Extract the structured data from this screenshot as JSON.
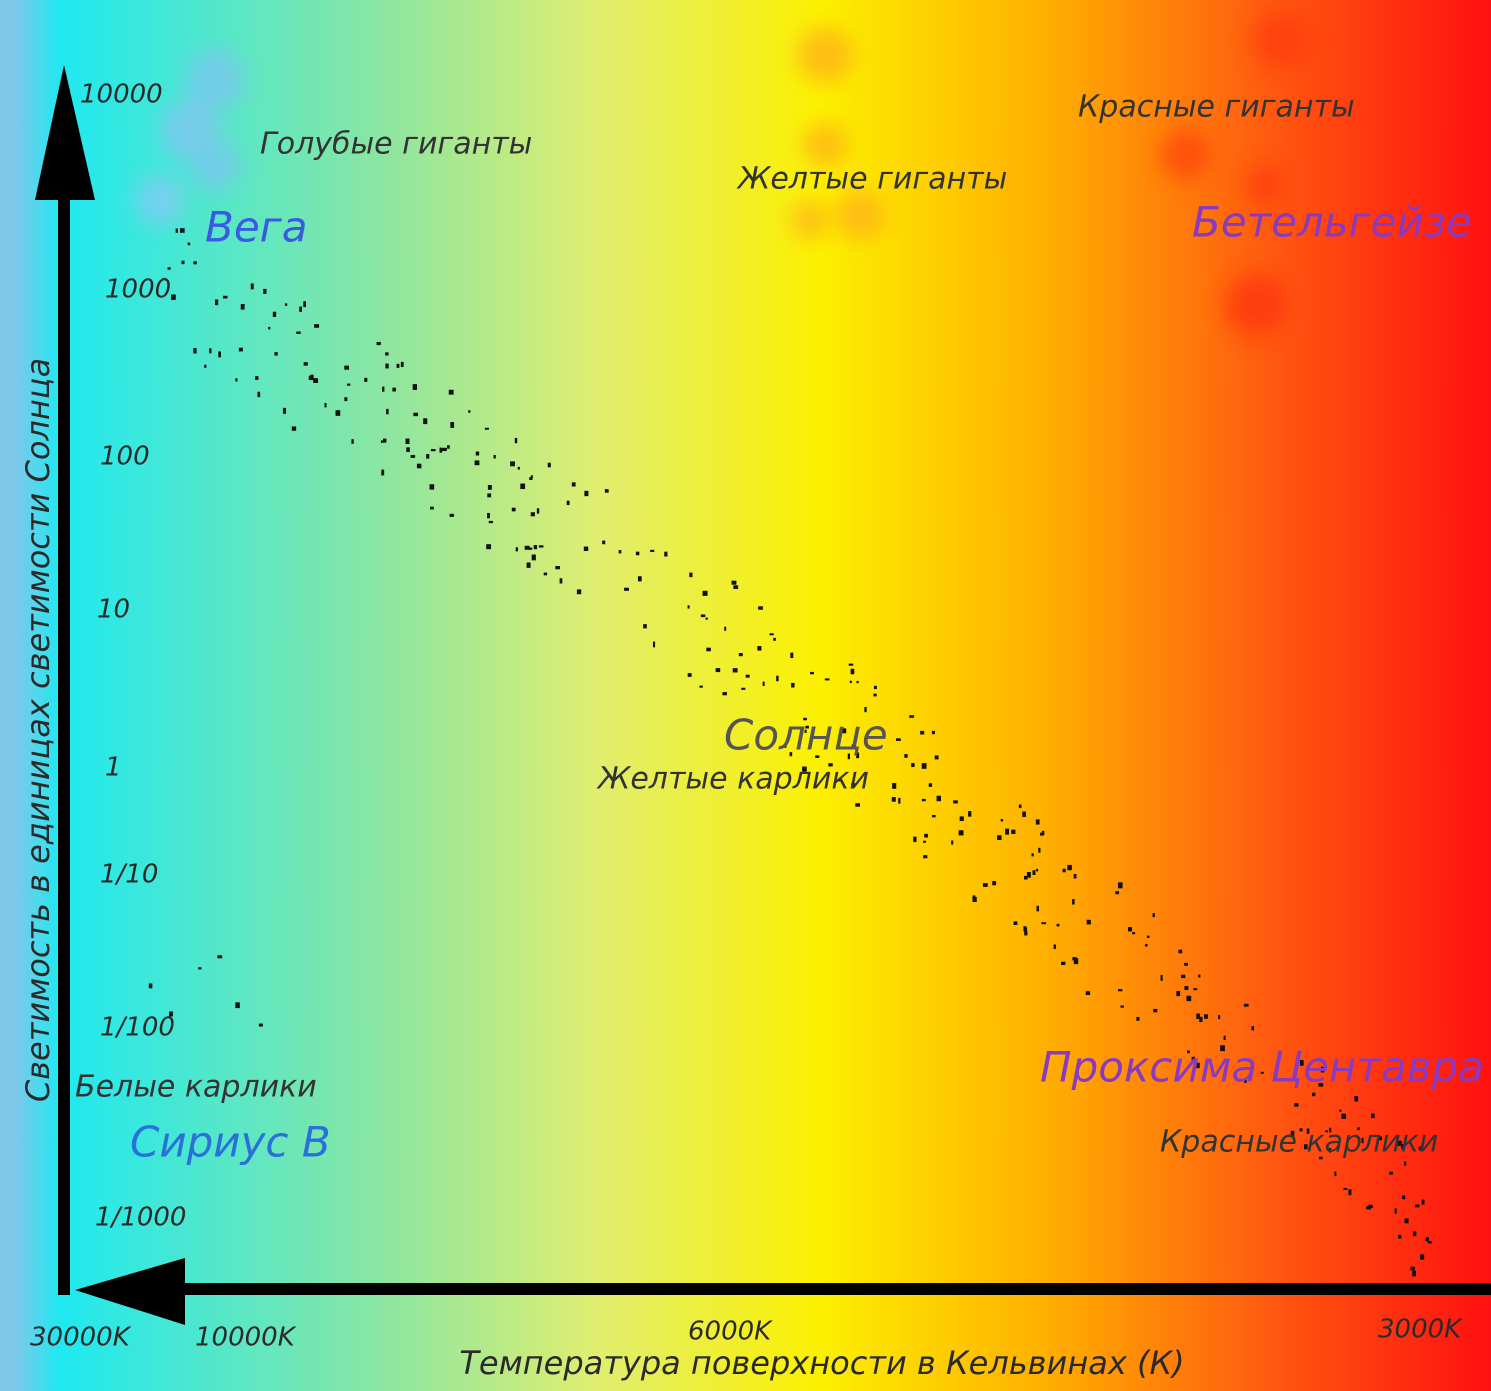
{
  "y_axis": {
    "label": "Светимость в единицах светимости Солнца",
    "ticks": [
      "10000",
      "1000",
      "100",
      "10",
      "1",
      "1/10",
      "1/100",
      "1/1000"
    ]
  },
  "x_axis": {
    "label": "Температура поверхности в Кельвинах (К)",
    "ticks": [
      "30000K",
      "10000K",
      "6000K",
      "3000K"
    ]
  },
  "regions": [
    "Голубые гиганты",
    "Желтые гиганты",
    "Красные гиганты",
    "Желтые карлики",
    "Белые карлики",
    "Красные карлики"
  ],
  "stars": [
    "Вега",
    "Бетельгейзе",
    "Солнце",
    "Сириус В",
    "Проксима Центавра"
  ]
}
